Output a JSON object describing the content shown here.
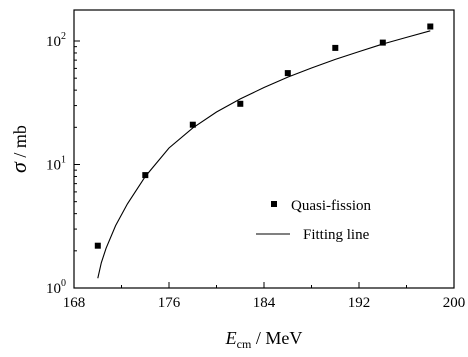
{
  "chart_data": {
    "type": "scatter",
    "xlabel_symbol": "E",
    "xlabel_subscript": "cm",
    "xlabel_unit": " / MeV",
    "ylabel_symbol": "σ",
    "ylabel_unit": " / mb",
    "xlim": [
      168,
      200
    ],
    "ylim": [
      1,
      200
    ],
    "yscale": "log",
    "x_ticks": [
      {
        "value": 168,
        "label": "168"
      },
      {
        "value": 176,
        "label": "176"
      },
      {
        "value": 184,
        "label": "184"
      },
      {
        "value": 192,
        "label": "192"
      },
      {
        "value": 200,
        "label": "200"
      }
    ],
    "y_ticks": [
      {
        "value": 1,
        "base": "10",
        "exp": "0"
      },
      {
        "value": 10,
        "base": "10",
        "exp": "1"
      },
      {
        "value": 100,
        "base": "10",
        "exp": "2"
      }
    ],
    "series": [
      {
        "name": "Quasi-fission",
        "kind": "points",
        "marker": "square",
        "color": "#000000",
        "x": [
          170.0,
          174.0,
          178.0,
          182.0,
          186.0,
          190.0,
          194.0,
          198.0
        ],
        "y": [
          2.2,
          8.2,
          21,
          31,
          55,
          88,
          97,
          131
        ]
      },
      {
        "name": "Fitting line",
        "kind": "line",
        "color": "#000000",
        "x": [
          170.0,
          170.3,
          170.7,
          171.5,
          172.5,
          174.0,
          176.0,
          178.0,
          180.0,
          182.0,
          184.0,
          186.0,
          188.0,
          190.0,
          192.0,
          194.0,
          196.0,
          198.0
        ],
        "y": [
          1.2,
          1.6,
          2.1,
          3.2,
          4.8,
          8.0,
          13.6,
          19.8,
          26.6,
          34.0,
          42.0,
          51.0,
          60.5,
          71.0,
          82.0,
          94.5,
          107.0,
          121.0
        ]
      }
    ],
    "legend_position": "bottom-right"
  }
}
